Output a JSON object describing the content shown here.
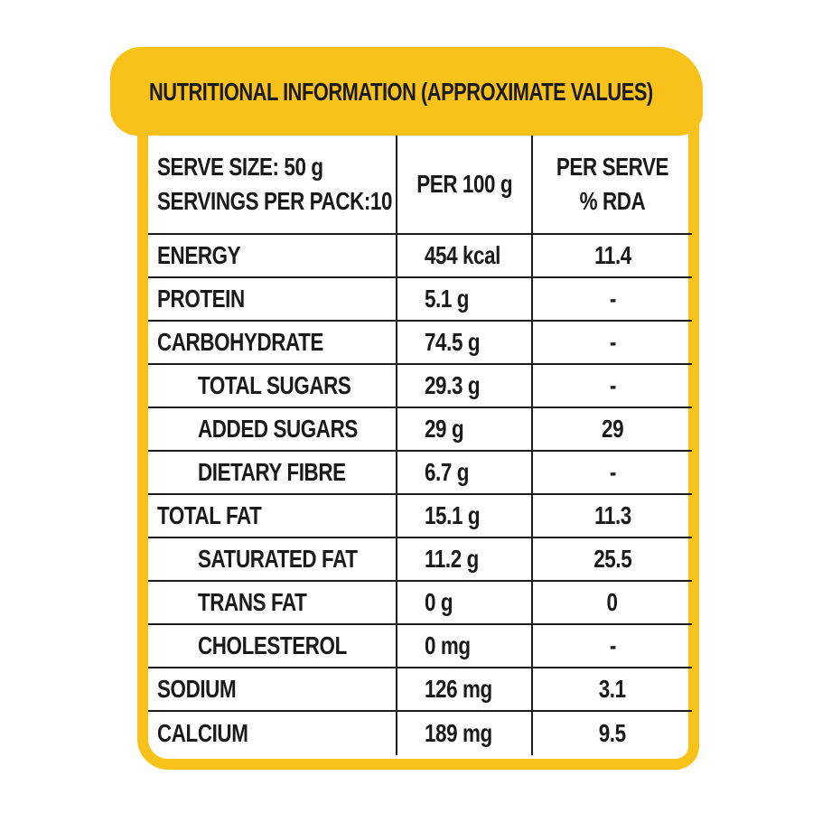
{
  "title": "NUTRITIONAL INFORMATION (APPROXIMATE VALUES)",
  "colors": {
    "accent": "#f9c21b",
    "text": "#1a1a1a",
    "background": "#ffffff"
  },
  "header": {
    "serve_size": "SERVE SIZE: 50 g",
    "servings_per_pack": "SERVINGS PER PACK:10",
    "per_100g": "PER 100 g",
    "per_serve_line1": "PER SERVE",
    "per_serve_line2": "% RDA"
  },
  "rows": [
    {
      "name": "ENERGY",
      "per100": "454 kcal",
      "rda": "11.4"
    },
    {
      "name": "PROTEIN",
      "per100": "5.1 g",
      "rda": "-"
    },
    {
      "name": "CARBOHYDRATE",
      "per100": "74.5 g",
      "rda": "-"
    },
    {
      "name": "TOTAL SUGARS",
      "per100": "29.3 g",
      "rda": "-"
    },
    {
      "name": "ADDED SUGARS",
      "per100": "29 g",
      "rda": "29"
    },
    {
      "name": "DIETARY FIBRE",
      "per100": "6.7 g",
      "rda": "-"
    },
    {
      "name": "TOTAL FAT",
      "per100": "15.1 g",
      "rda": "11.3"
    },
    {
      "name": "SATURATED FAT",
      "per100": "11.2 g",
      "rda": "25.5"
    },
    {
      "name": "TRANS FAT",
      "per100": "0 g",
      "rda": "0"
    },
    {
      "name": "CHOLESTEROL",
      "per100": "0 mg",
      "rda": "-"
    },
    {
      "name": "SODIUM",
      "per100": "126 mg",
      "rda": "3.1"
    },
    {
      "name": "CALCIUM",
      "per100": "189 mg",
      "rda": "9.5"
    }
  ]
}
